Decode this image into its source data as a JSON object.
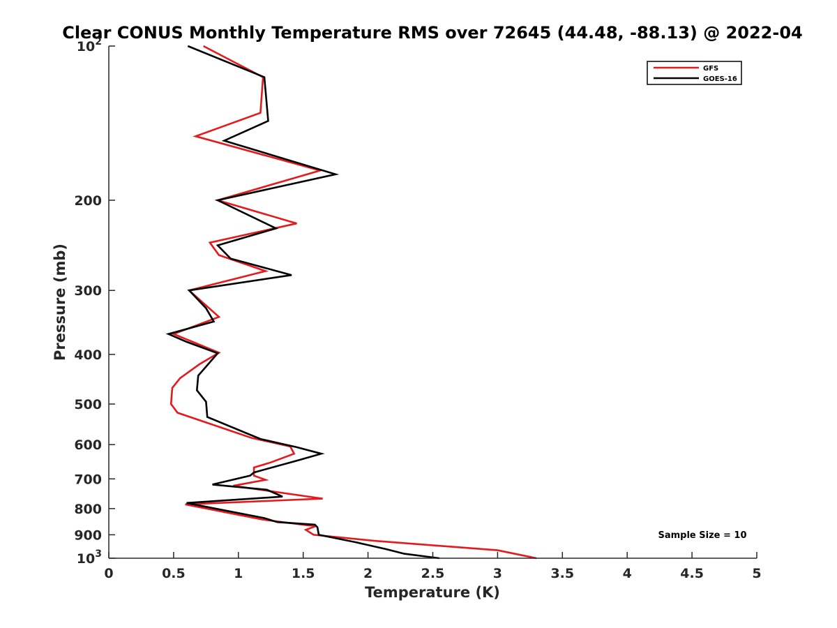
{
  "chart_data": {
    "type": "line",
    "title": "Clear CONUS Monthly Temperature RMS over 72645 (44.48, -88.13) @ 2022-04",
    "xlabel": "Temperature (K)",
    "ylabel": "Pressure (mb)",
    "xlim": [
      0,
      5
    ],
    "ylim": [
      100,
      1000
    ],
    "yscale": "log",
    "yreversed": true,
    "grid": false,
    "legend_position": "top-right",
    "annotation": "Sample Size = 10",
    "xticks": [
      "0",
      "0.5",
      "1",
      "1.5",
      "2",
      "2.5",
      "3",
      "3.5",
      "4",
      "4.5",
      "5"
    ],
    "yticks": [
      {
        "value": 100,
        "base": "10",
        "exp": "2"
      },
      {
        "value": 200,
        "label": "200"
      },
      {
        "value": 300,
        "label": "300"
      },
      {
        "value": 400,
        "label": "400"
      },
      {
        "value": 500,
        "label": "500"
      },
      {
        "value": 600,
        "label": "600"
      },
      {
        "value": 700,
        "label": "700"
      },
      {
        "value": 800,
        "label": "800"
      },
      {
        "value": 900,
        "label": "900"
      },
      {
        "value": 1000,
        "base": "10",
        "exp": "3"
      }
    ],
    "series": [
      {
        "name": "GFS",
        "color": "#e41a1c",
        "points": [
          [
            0.73,
            100
          ],
          [
            1.19,
            115
          ],
          [
            1.17,
            135
          ],
          [
            0.67,
            150
          ],
          [
            1.63,
            175
          ],
          [
            0.84,
            200
          ],
          [
            1.45,
            222
          ],
          [
            0.78,
            242
          ],
          [
            0.85,
            256
          ],
          [
            1.21,
            275
          ],
          [
            0.62,
            300
          ],
          [
            0.85,
            338
          ],
          [
            0.5,
            365
          ],
          [
            0.85,
            397
          ],
          [
            0.7,
            418
          ],
          [
            0.55,
            445
          ],
          [
            0.49,
            465
          ],
          [
            0.48,
            500
          ],
          [
            0.53,
            520
          ],
          [
            1.1,
            582
          ],
          [
            1.4,
            605
          ],
          [
            1.43,
            625
          ],
          [
            1.25,
            650
          ],
          [
            1.12,
            665
          ],
          [
            1.12,
            690
          ],
          [
            1.21,
            703
          ],
          [
            0.96,
            722
          ],
          [
            1.65,
            765
          ],
          [
            0.59,
            785
          ],
          [
            1.18,
            840
          ],
          [
            1.53,
            862
          ],
          [
            1.6,
            865
          ],
          [
            1.52,
            880
          ],
          [
            1.58,
            900
          ],
          [
            2.05,
            925
          ],
          [
            3.0,
            965
          ],
          [
            3.3,
            1000
          ]
        ]
      },
      {
        "name": "GOES-16",
        "color": "#000000",
        "points": [
          [
            0.61,
            100
          ],
          [
            1.2,
            115
          ],
          [
            1.23,
            140
          ],
          [
            0.89,
            153
          ],
          [
            1.75,
            178
          ],
          [
            0.84,
            200
          ],
          [
            1.29,
            227
          ],
          [
            0.84,
            245
          ],
          [
            0.94,
            260
          ],
          [
            1.41,
            280
          ],
          [
            0.62,
            300
          ],
          [
            0.75,
            325
          ],
          [
            0.81,
            345
          ],
          [
            0.46,
            365
          ],
          [
            0.6,
            378
          ],
          [
            0.84,
            398
          ],
          [
            0.69,
            440
          ],
          [
            0.68,
            470
          ],
          [
            0.75,
            495
          ],
          [
            0.76,
            530
          ],
          [
            1.17,
            585
          ],
          [
            1.45,
            607
          ],
          [
            1.64,
            625
          ],
          [
            1.45,
            645
          ],
          [
            1.12,
            680
          ],
          [
            1.09,
            690
          ],
          [
            0.8,
            718
          ],
          [
            1.22,
            735
          ],
          [
            1.34,
            758
          ],
          [
            0.6,
            780
          ],
          [
            1.2,
            835
          ],
          [
            1.3,
            850
          ],
          [
            1.59,
            860
          ],
          [
            1.61,
            870
          ],
          [
            1.62,
            900
          ],
          [
            1.9,
            930
          ],
          [
            2.14,
            960
          ],
          [
            2.28,
            980
          ],
          [
            2.55,
            1000
          ]
        ]
      }
    ]
  }
}
